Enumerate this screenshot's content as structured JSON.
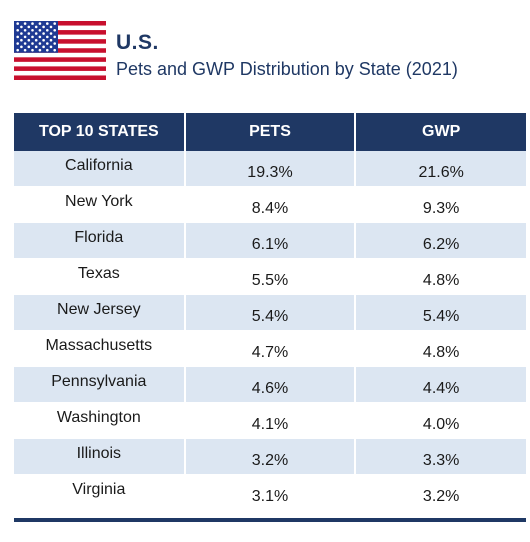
{
  "header": {
    "country": "U.S.",
    "subtitle": "Pets and GWP Distribution by State (2021)"
  },
  "table": {
    "columns": [
      "TOP 10 STATES",
      "PETS",
      "GWP"
    ],
    "rows": [
      {
        "state": "California",
        "pets": "19.3%",
        "gwp": "21.6%"
      },
      {
        "state": "New York",
        "pets": "8.4%",
        "gwp": "9.3%"
      },
      {
        "state": "Florida",
        "pets": "6.1%",
        "gwp": "6.2%"
      },
      {
        "state": "Texas",
        "pets": "5.5%",
        "gwp": "4.8%"
      },
      {
        "state": "New Jersey",
        "pets": "5.4%",
        "gwp": "5.4%"
      },
      {
        "state": "Massachusetts",
        "pets": "4.7%",
        "gwp": "4.8%"
      },
      {
        "state": "Pennsylvania",
        "pets": "4.6%",
        "gwp": "4.4%"
      },
      {
        "state": "Washington",
        "pets": "4.1%",
        "gwp": "4.0%"
      },
      {
        "state": "Illinois",
        "pets": "3.2%",
        "gwp": "3.3%"
      },
      {
        "state": "Virginia",
        "pets": "3.1%",
        "gwp": "3.2%"
      }
    ]
  },
  "colors": {
    "header_bg": "#1f3864",
    "row_shade": "#dce6f2",
    "flag_red": "#c8102e",
    "flag_blue": "#1f3a93"
  },
  "icons": {
    "flag": "us-flag-icon"
  }
}
